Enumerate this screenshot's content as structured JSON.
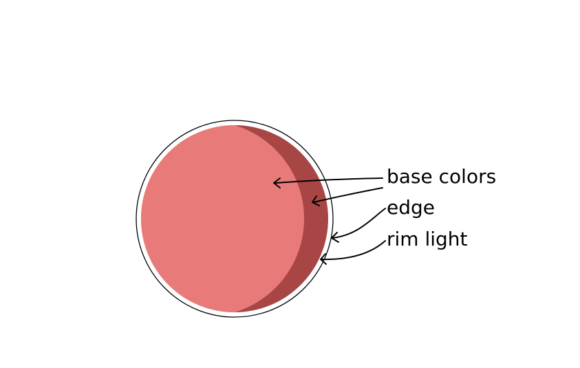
{
  "labels": {
    "base_colors": "base colors",
    "edge": "edge",
    "rim_light": "rim light"
  },
  "colors": {
    "background": "#ffffff",
    "base": "#e87b7a",
    "edge": "#a84646",
    "rim_light": "#ffffff",
    "outline": "#000000"
  }
}
